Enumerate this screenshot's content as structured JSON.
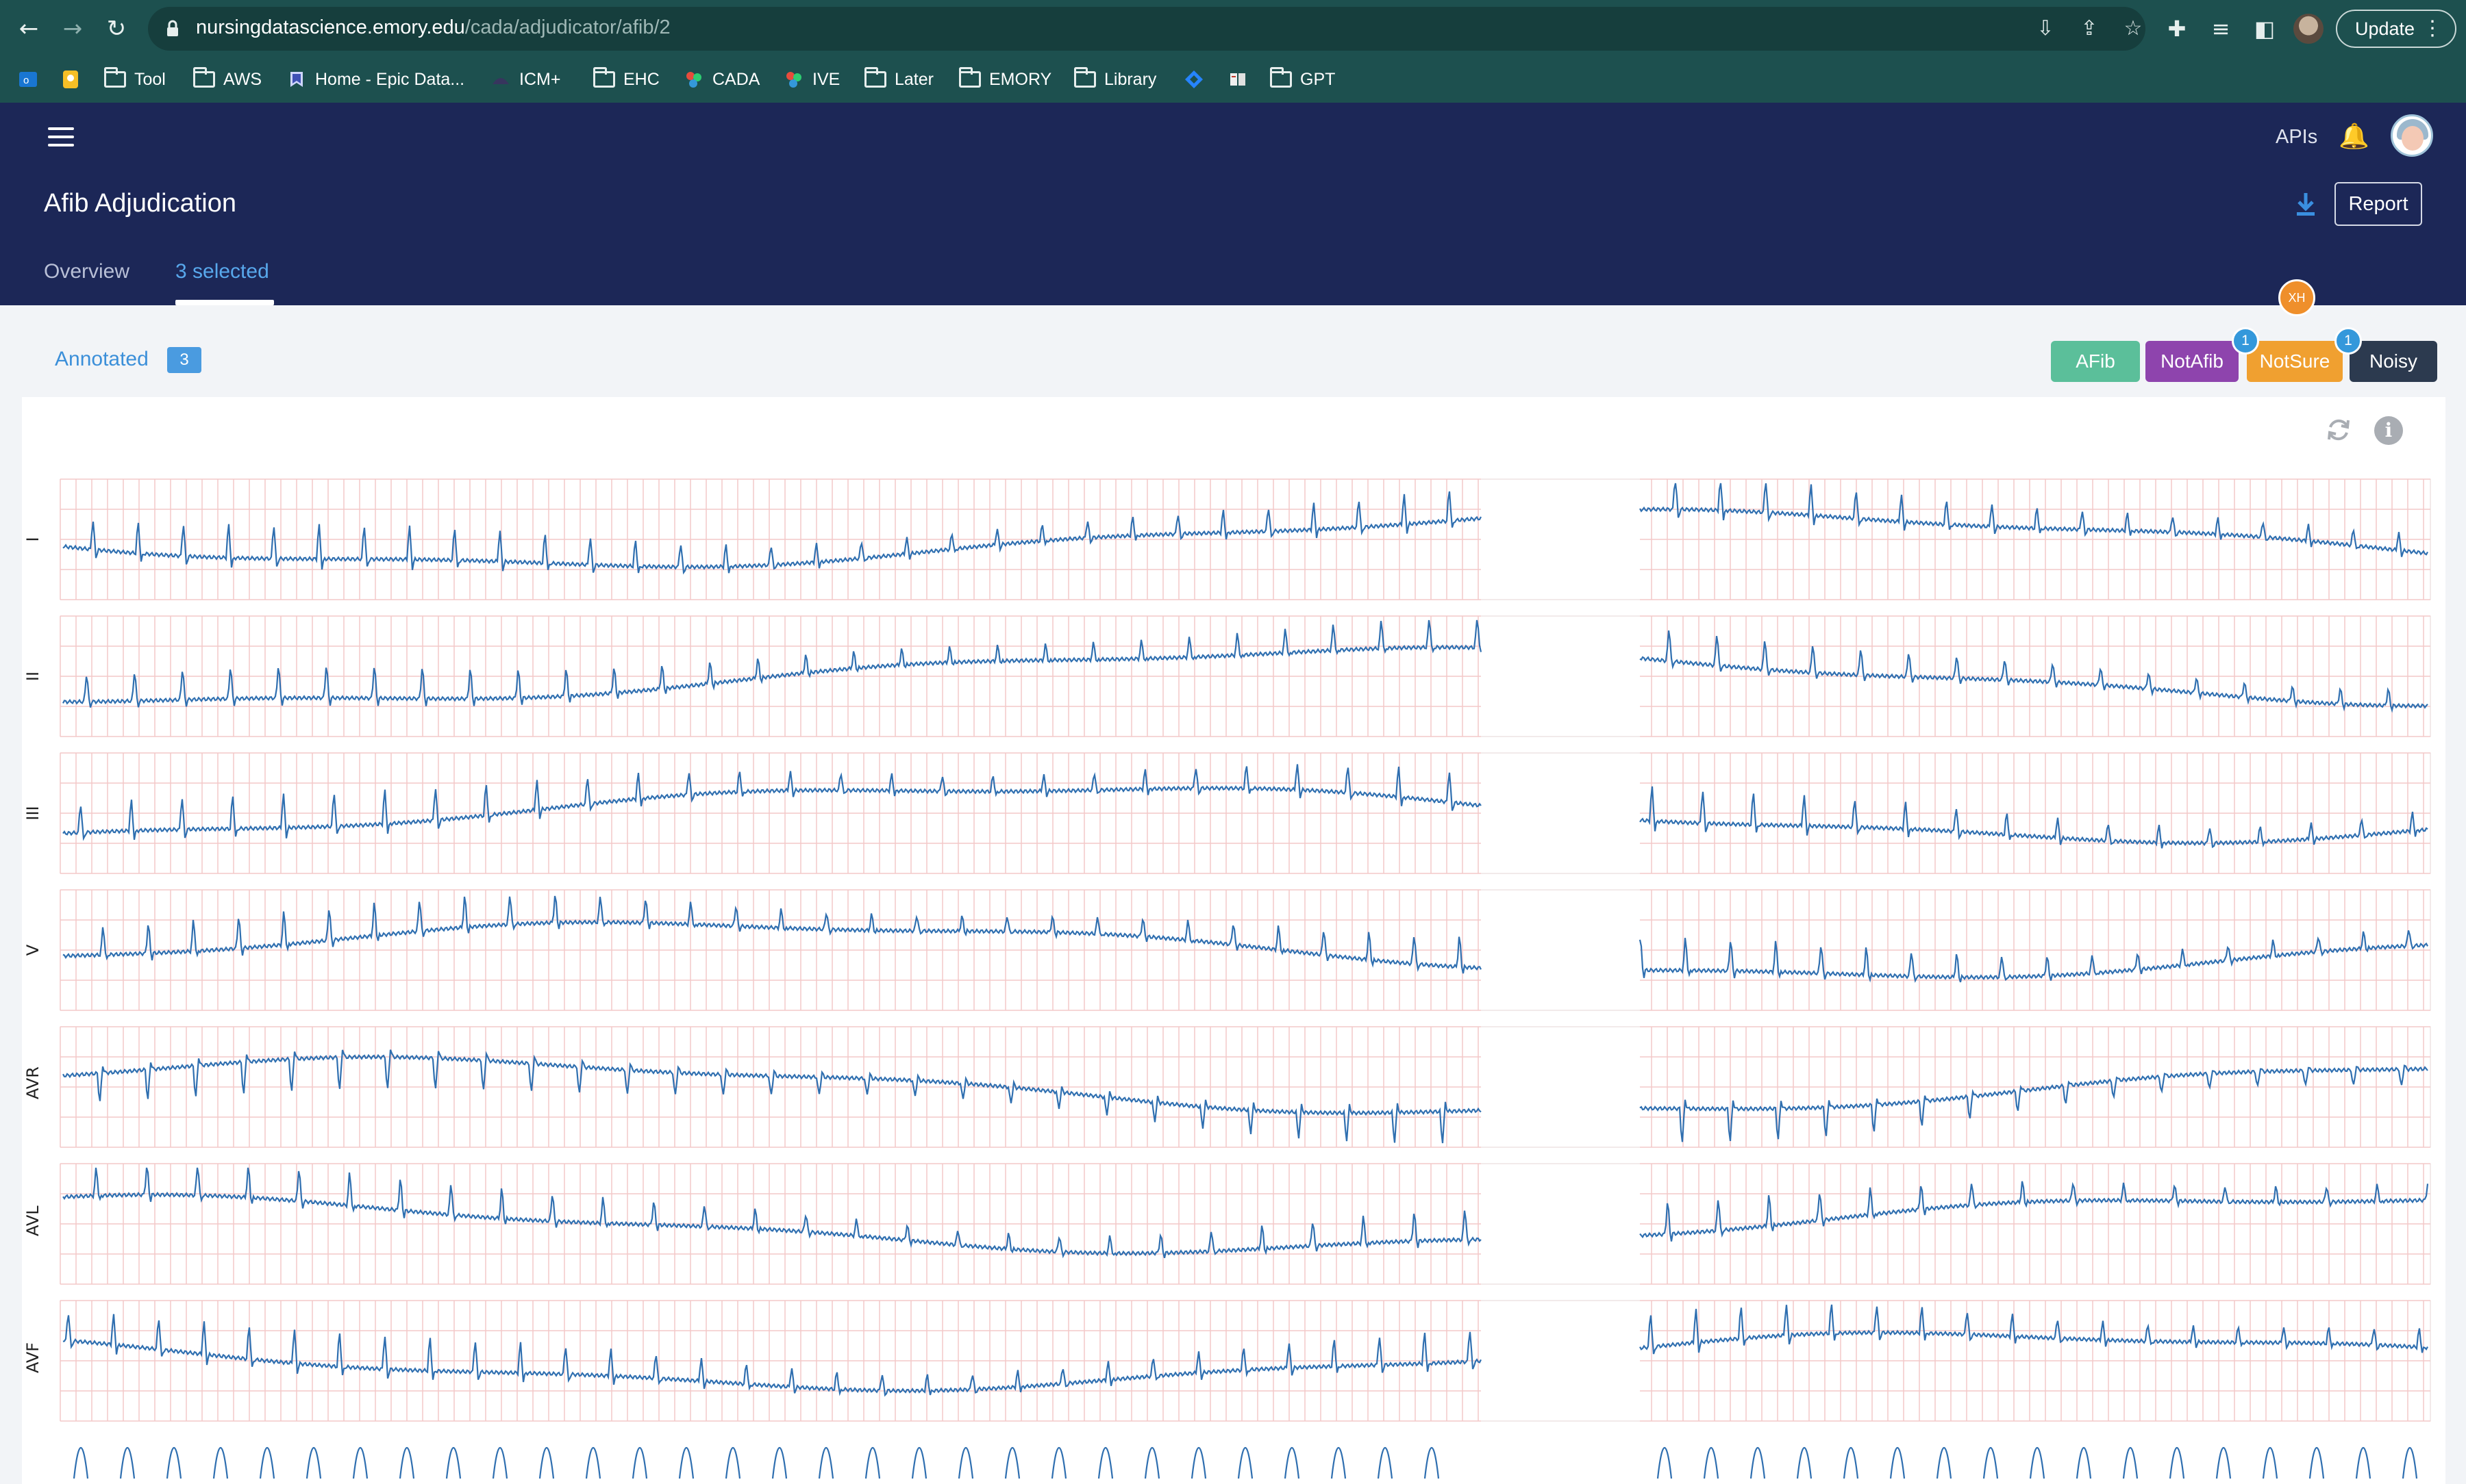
{
  "browser": {
    "url_host": "nursingdatascience.emory.edu",
    "url_path": "/cada/adjudicator/afib/2",
    "update_label": "Update",
    "bookmarks": [
      {
        "label": "",
        "icon": "outlook-icon"
      },
      {
        "label": "",
        "icon": "keep-icon"
      },
      {
        "label": "Tool",
        "icon": "folder-icon"
      },
      {
        "label": "AWS",
        "icon": "folder-icon"
      },
      {
        "label": "Home - Epic Data...",
        "icon": "epic-icon"
      },
      {
        "label": "ICM+",
        "icon": "icm-icon"
      },
      {
        "label": "EHC",
        "icon": "folder-icon"
      },
      {
        "label": "CADA",
        "icon": "cada-icon"
      },
      {
        "label": "IVE",
        "icon": "ive-icon"
      },
      {
        "label": "Later",
        "icon": "folder-icon"
      },
      {
        "label": "EMORY",
        "icon": "folder-icon"
      },
      {
        "label": "Library",
        "icon": "folder-icon"
      },
      {
        "label": "",
        "icon": "jira-icon"
      },
      {
        "label": "",
        "icon": "book-icon"
      },
      {
        "label": "GPT",
        "icon": "folder-icon"
      }
    ]
  },
  "header": {
    "apis_label": "APIs",
    "title": "Afib Adjudication",
    "report_label": "Report",
    "tabs": [
      {
        "label": "Overview",
        "active": false
      },
      {
        "label": "3 selected",
        "active": true
      }
    ]
  },
  "toolbar": {
    "annotated_label": "Annotated",
    "annotated_count": "3",
    "user_initials": "XH",
    "labels": [
      {
        "label": "AFib",
        "count": "",
        "color": "#5bbf9a"
      },
      {
        "label": "NotAfib",
        "count": "1",
        "color": "#8e44ad"
      },
      {
        "label": "NotSure",
        "count": "1",
        "color": "#f0a030"
      },
      {
        "label": "Noisy",
        "count": "",
        "color": "#2c3a4f"
      }
    ]
  },
  "ecg": {
    "trace_color": "#2f6fb0",
    "grid_color": "#f3c9c9",
    "leads": [
      "I",
      "II",
      "III",
      "V",
      "AVR",
      "AVL",
      "AVF"
    ]
  }
}
